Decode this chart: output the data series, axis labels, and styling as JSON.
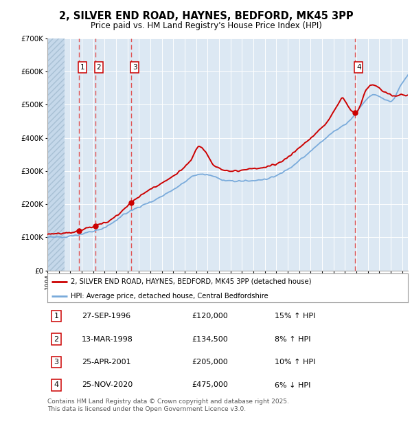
{
  "title": "2, SILVER END ROAD, HAYNES, BEDFORD, MK45 3PP",
  "subtitle": "Price paid vs. HM Land Registry's House Price Index (HPI)",
  "legend_line1": "2, SILVER END ROAD, HAYNES, BEDFORD, MK45 3PP (detached house)",
  "legend_line2": "HPI: Average price, detached house, Central Bedfordshire",
  "footer": "Contains HM Land Registry data © Crown copyright and database right 2025.\nThis data is licensed under the Open Government Licence v3.0.",
  "sales": [
    {
      "num": 1,
      "date": "27-SEP-1996",
      "price": 120000,
      "pct": "15%",
      "dir": "↑"
    },
    {
      "num": 2,
      "date": "13-MAR-1998",
      "price": 134500,
      "pct": "8%",
      "dir": "↑"
    },
    {
      "num": 3,
      "date": "25-APR-2001",
      "price": 205000,
      "pct": "10%",
      "dir": "↑"
    },
    {
      "num": 4,
      "date": "25-NOV-2020",
      "price": 475000,
      "pct": "6%",
      "dir": "↓"
    }
  ],
  "sale_years": [
    1996.74,
    1998.2,
    2001.32,
    2020.9
  ],
  "sale_prices": [
    120000,
    134500,
    205000,
    475000
  ],
  "ylim": [
    0,
    700000
  ],
  "xlim_start": 1994.0,
  "xlim_end": 2025.5,
  "hatch_end_year": 1995.5,
  "red_color": "#cc0000",
  "blue_color": "#7aabdb",
  "background_color": "#dce8f3",
  "grid_color": "#ffffff",
  "vline_color": "#e05555"
}
